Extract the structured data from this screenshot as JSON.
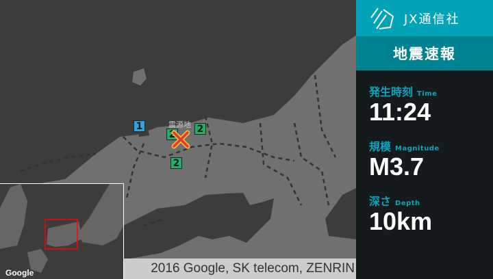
{
  "brand": {
    "name": "JX通信社",
    "logo_icon": "jx-logo-icon"
  },
  "title": "地震速報",
  "info": [
    {
      "label_ja": "発生時刻",
      "label_en": "Time",
      "value": "11:24"
    },
    {
      "label_ja": "規模",
      "label_en": "Magnitude",
      "value": "M3.7"
    },
    {
      "label_ja": "深さ",
      "label_en": "Depth",
      "value": "10km"
    }
  ],
  "map": {
    "epicenter_label": "震源地",
    "markers": [
      {
        "intensity": "1",
        "color": "#29a8e0"
      },
      {
        "intensity": "2",
        "color": "#1bb36a"
      },
      {
        "intensity": "2",
        "color": "#1bb36a"
      },
      {
        "intensity": "2",
        "color": "#1bb36a"
      }
    ],
    "epicenter_color": "#e53935",
    "copyright": "2016 Google, SK telecom, ZENRIN",
    "inset_logo": "Google"
  },
  "colors": {
    "accent": "#00a3b8",
    "accent_dark": "#008391",
    "panel_bg": "#151b1d",
    "label": "#09a5bd"
  }
}
